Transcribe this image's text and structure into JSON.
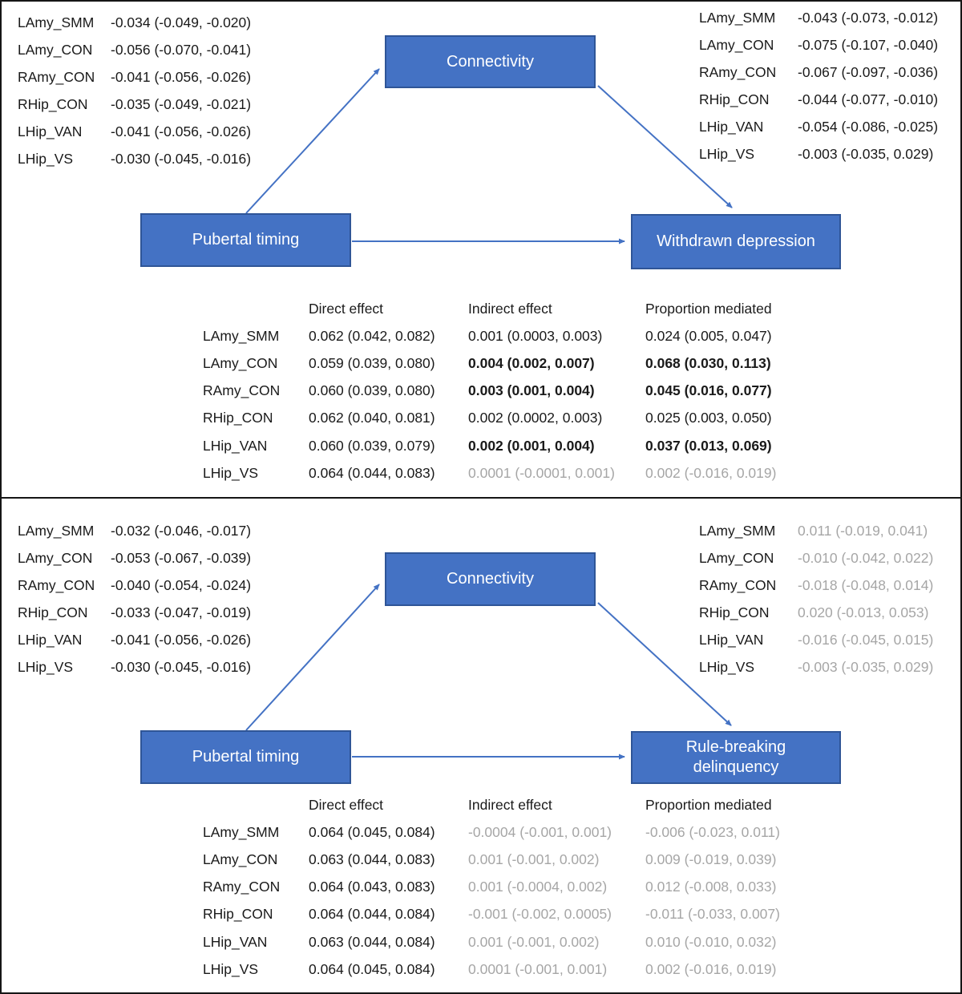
{
  "colors": {
    "box_fill": "#4472C4",
    "box_border": "#2F5597",
    "arrow": "#4472C4",
    "gray_text": "#A6A6A6",
    "text": "#1a1a1a",
    "panel_border": "#161616"
  },
  "panels": [
    {
      "name": "withdrawn-depression-mediation",
      "nodes": {
        "mediator": "Connectivity",
        "predictor": "Pubertal timing",
        "outcome": "Withdrawn depression"
      },
      "left_list": [
        {
          "label": "LAmy_SMM",
          "value": "-0.034 (-0.049, -0.020)",
          "gray": false
        },
        {
          "label": "LAmy_CON",
          "value": "-0.056 (-0.070, -0.041)",
          "gray": false
        },
        {
          "label": "RAmy_CON",
          "value": "-0.041 (-0.056, -0.026)",
          "gray": false
        },
        {
          "label": "RHip_CON",
          "value": "-0.035 (-0.049, -0.021)",
          "gray": false
        },
        {
          "label": "LHip_VAN",
          "value": "-0.041 (-0.056, -0.026)",
          "gray": false
        },
        {
          "label": "LHip_VS",
          "value": "-0.030 (-0.045, -0.016)",
          "gray": false
        }
      ],
      "right_list": [
        {
          "label": "LAmy_SMM",
          "value": "-0.043 (-0.073, -0.012)",
          "gray": false
        },
        {
          "label": "LAmy_CON",
          "value": "-0.075 (-0.107, -0.040)",
          "gray": false
        },
        {
          "label": "RAmy_CON",
          "value": "-0.067 (-0.097, -0.036)",
          "gray": false
        },
        {
          "label": "RHip_CON",
          "value": "-0.044 (-0.077, -0.010)",
          "gray": false
        },
        {
          "label": "LHip_VAN",
          "value": "-0.054 (-0.086, -0.025)",
          "gray": false
        },
        {
          "label": "LHip_VS",
          "value": "-0.003 (-0.035, 0.029)",
          "gray": false
        }
      ],
      "table": {
        "headers": [
          "Direct effect",
          "Indirect effect",
          "Proportion mediated"
        ],
        "rows": [
          {
            "label": "LAmy_SMM",
            "direct": "0.062 (0.042, 0.082)",
            "indirect": "0.001 (0.0003, 0.003)",
            "proportion": "0.024 (0.005, 0.047)",
            "indirect_style": "normal",
            "proportion_style": "normal"
          },
          {
            "label": "LAmy_CON",
            "direct": "0.059 (0.039, 0.080)",
            "indirect": "0.004 (0.002, 0.007)",
            "proportion": "0.068 (0.030, 0.113)",
            "indirect_style": "bold",
            "proportion_style": "bold"
          },
          {
            "label": "RAmy_CON",
            "direct": "0.060 (0.039, 0.080)",
            "indirect": "0.003 (0.001, 0.004)",
            "proportion": "0.045 (0.016, 0.077)",
            "indirect_style": "bold",
            "proportion_style": "bold"
          },
          {
            "label": "RHip_CON",
            "direct": "0.062 (0.040, 0.081)",
            "indirect": "0.002 (0.0002, 0.003)",
            "proportion": "0.025 (0.003, 0.050)",
            "indirect_style": "normal",
            "proportion_style": "normal"
          },
          {
            "label": "LHip_VAN",
            "direct": "0.060 (0.039, 0.079)",
            "indirect": "0.002 (0.001, 0.004)",
            "proportion": "0.037 (0.013, 0.069)",
            "indirect_style": "bold",
            "proportion_style": "bold"
          },
          {
            "label": "LHip_VS",
            "direct": "0.064 (0.044, 0.083)",
            "indirect": "0.0001 (-0.0001, 0.001)",
            "proportion": "0.002 (-0.016, 0.019)",
            "indirect_style": "gray",
            "proportion_style": "gray"
          }
        ]
      }
    },
    {
      "name": "rule-breaking-delinquency-mediation",
      "nodes": {
        "mediator": "Connectivity",
        "predictor": "Pubertal timing",
        "outcome": "Rule-breaking\ndelinquency"
      },
      "left_list": [
        {
          "label": "LAmy_SMM",
          "value": "-0.032 (-0.046, -0.017)",
          "gray": false
        },
        {
          "label": "LAmy_CON",
          "value": "-0.053 (-0.067, -0.039)",
          "gray": false
        },
        {
          "label": "RAmy_CON",
          "value": "-0.040 (-0.054, -0.024)",
          "gray": false
        },
        {
          "label": "RHip_CON",
          "value": "-0.033 (-0.047, -0.019)",
          "gray": false
        },
        {
          "label": "LHip_VAN",
          "value": "-0.041 (-0.056, -0.026)",
          "gray": false
        },
        {
          "label": "LHip_VS",
          "value": "-0.030 (-0.045, -0.016)",
          "gray": false
        }
      ],
      "right_list": [
        {
          "label": "LAmy_SMM",
          "value": "0.011 (-0.019, 0.041)",
          "gray": true
        },
        {
          "label": "LAmy_CON",
          "value": "-0.010 (-0.042, 0.022)",
          "gray": true
        },
        {
          "label": "RAmy_CON",
          "value": "-0.018 (-0.048, 0.014)",
          "gray": true
        },
        {
          "label": "RHip_CON",
          "value": "0.020 (-0.013, 0.053)",
          "gray": true
        },
        {
          "label": "LHip_VAN",
          "value": "-0.016 (-0.045, 0.015)",
          "gray": true
        },
        {
          "label": "LHip_VS",
          "value": "-0.003 (-0.035, 0.029)",
          "gray": true
        }
      ],
      "table": {
        "headers": [
          "Direct effect",
          "Indirect effect",
          "Proportion mediated"
        ],
        "rows": [
          {
            "label": "LAmy_SMM",
            "direct": "0.064 (0.045, 0.084)",
            "indirect": "-0.0004 (-0.001, 0.001)",
            "proportion": "-0.006 (-0.023, 0.011)",
            "indirect_style": "gray",
            "proportion_style": "gray"
          },
          {
            "label": "LAmy_CON",
            "direct": "0.063 (0.044, 0.083)",
            "indirect": "0.001 (-0.001, 0.002)",
            "proportion": "0.009 (-0.019, 0.039)",
            "indirect_style": "gray",
            "proportion_style": "gray"
          },
          {
            "label": "RAmy_CON",
            "direct": "0.064 (0.043, 0.083)",
            "indirect": "0.001 (-0.0004, 0.002)",
            "proportion": "0.012 (-0.008, 0.033)",
            "indirect_style": "gray",
            "proportion_style": "gray"
          },
          {
            "label": "RHip_CON",
            "direct": "0.064 (0.044, 0.084)",
            "indirect": "-0.001 (-0.002, 0.0005)",
            "proportion": "-0.011 (-0.033, 0.007)",
            "indirect_style": "gray",
            "proportion_style": "gray"
          },
          {
            "label": "LHip_VAN",
            "direct": "0.063 (0.044, 0.084)",
            "indirect": "0.001 (-0.001, 0.002)",
            "proportion": "0.010 (-0.010, 0.032)",
            "indirect_style": "gray",
            "proportion_style": "gray"
          },
          {
            "label": "LHip_VS",
            "direct": "0.064 (0.045, 0.084)",
            "indirect": "0.0001 (-0.001, 0.001)",
            "proportion": "0.002 (-0.016, 0.019)",
            "indirect_style": "gray",
            "proportion_style": "gray"
          }
        ]
      }
    }
  ]
}
